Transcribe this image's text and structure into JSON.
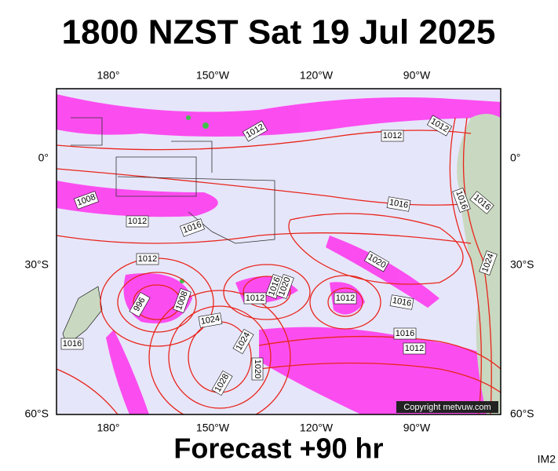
{
  "header": {
    "title": "1800 NZST Sat 19 Jul 2025"
  },
  "map": {
    "lon_labels_top": [
      "180°",
      "150°W",
      "120°W",
      "90°W"
    ],
    "lon_labels_bottom": [
      "180°",
      "150°W",
      "120°W",
      "90°W"
    ],
    "lat_labels_left": [
      "0°",
      "30°S",
      "60°S"
    ],
    "lat_labels_right": [
      "0°",
      "30°S",
      "60°S"
    ],
    "isobar_labels": [
      "1012",
      "1012",
      "1012",
      "1008",
      "1012",
      "1016",
      "1016",
      "1016",
      "1016",
      "1012",
      "1020",
      "1024",
      "996",
      "1008",
      "1012",
      "1016",
      "1020",
      "1012",
      "1016",
      "1024",
      "1016",
      "1012",
      "1016",
      "1024",
      "1020",
      "1028"
    ],
    "copyright": "Copyright metvuw.com"
  },
  "footer": {
    "forecast": "Forecast +90 hr",
    "image_id": "IM2"
  }
}
